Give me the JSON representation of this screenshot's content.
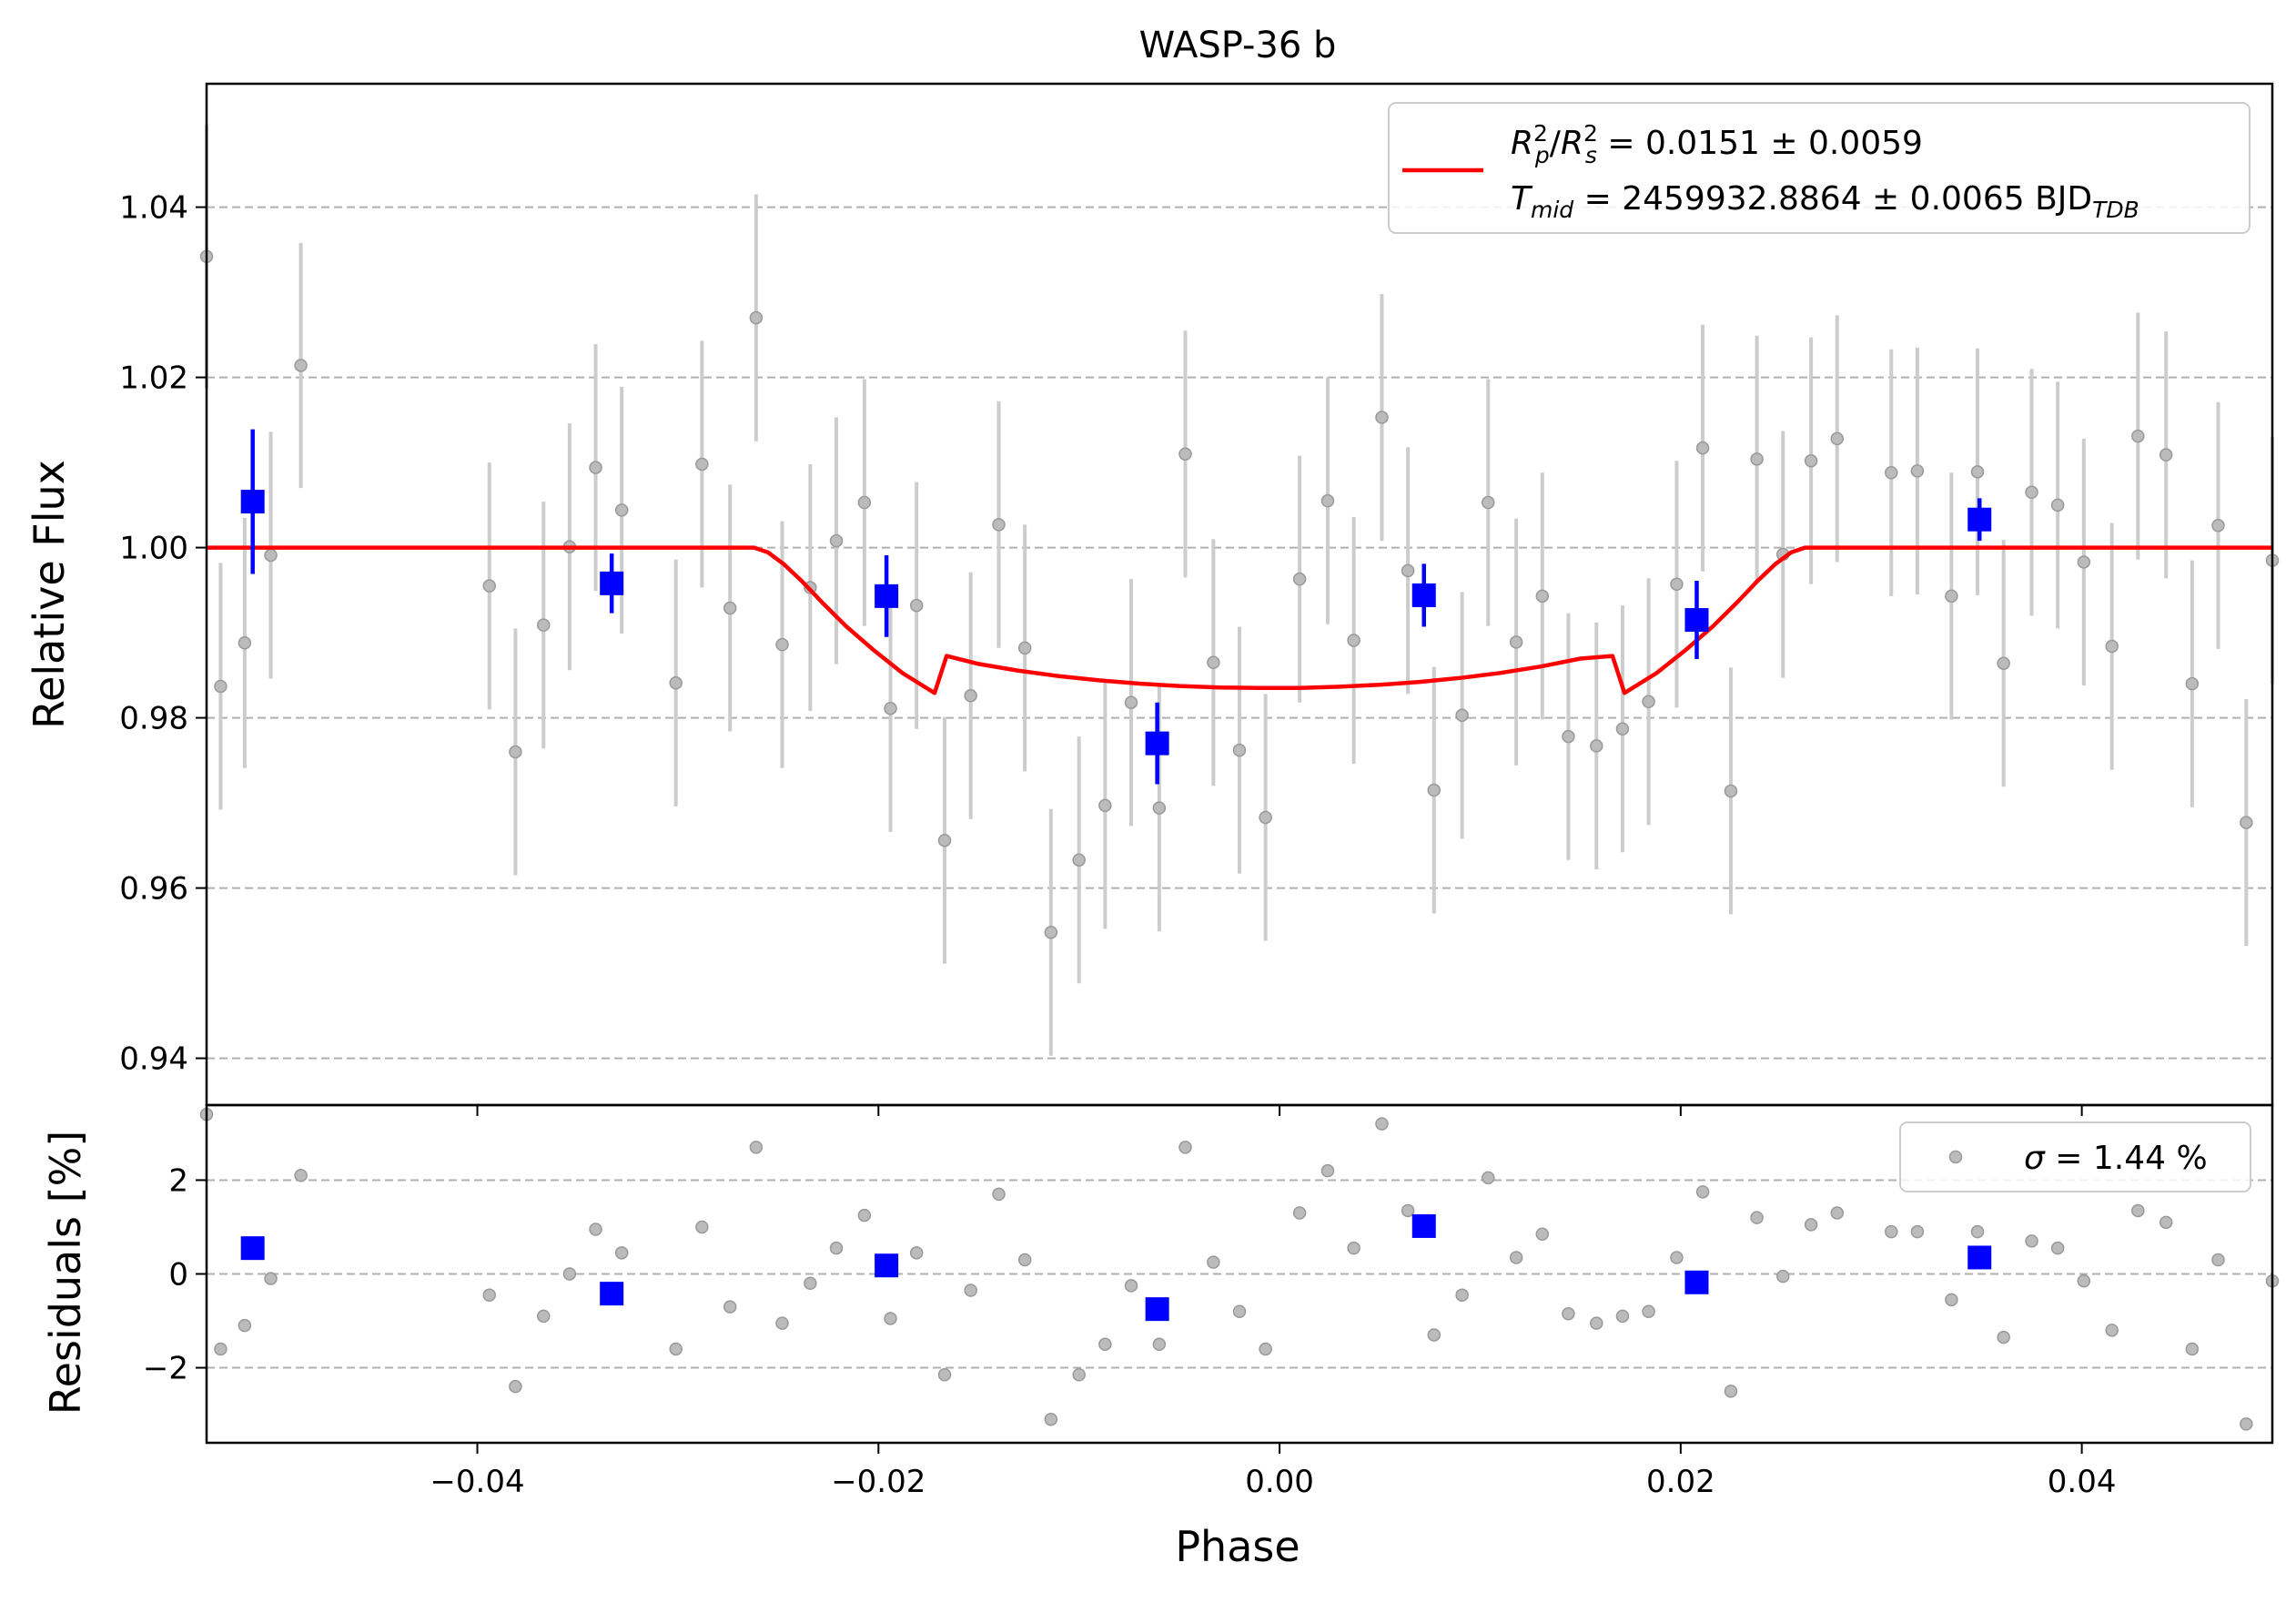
{
  "chart_data": [
    {
      "type": "scatter",
      "panel": "main",
      "title": "WASP-36 b",
      "xlabel": "Phase",
      "ylabel": "Relative Flux",
      "xlim": [
        -0.0535,
        0.0495
      ],
      "ylim": [
        0.9345,
        1.0545
      ],
      "xticks": [
        -0.04,
        -0.02,
        0.0,
        0.02,
        0.04
      ],
      "xtick_labels": [
        "−0.04",
        "−0.02",
        "0.00",
        "0.02",
        "0.04"
      ],
      "yticks": [
        0.94,
        0.96,
        0.98,
        1.0,
        1.02,
        1.04
      ],
      "ytick_labels": [
        "0.94",
        "0.96",
        "0.98",
        "1.00",
        "1.02",
        "1.04"
      ],
      "grid": "horizontal dashed",
      "legend_position": "top-right",
      "legend": {
        "line1": {
          "a": "R",
          "a_sup": "2",
          "a_sub": "p",
          "slash": "/",
          "b": "R",
          "b_sup": "2",
          "b_sub": "s",
          "value": " = 0.0151 ± 0.0059"
        },
        "line2": {
          "a": "T",
          "a_sub": "mid",
          "value": " = 2459932.8864 ± 0.0065 BJD",
          "unit_sub": "TDB"
        }
      },
      "series": [
        {
          "name": "raw",
          "color": "#999999",
          "error_color": "#cccccc",
          "points": [
            [
              -0.0535,
              1.0342,
              0.0155
            ],
            [
              -0.0528,
              0.9837,
              0.0145
            ],
            [
              -0.0516,
              0.9888,
              0.0147
            ],
            [
              -0.0503,
              0.9991,
              0.0145
            ],
            [
              -0.0488,
              1.0214,
              0.0144
            ],
            [
              -0.0394,
              0.9955,
              0.0145
            ],
            [
              -0.0381,
              0.976,
              0.0145
            ],
            [
              -0.0367,
              0.9909,
              0.0145
            ],
            [
              -0.0354,
              1.0001,
              0.0145
            ],
            [
              -0.0341,
              1.0094,
              0.0145
            ],
            [
              -0.0328,
              1.0044,
              0.0145
            ],
            [
              -0.0301,
              0.9841,
              0.0145
            ],
            [
              -0.0288,
              1.0098,
              0.0145
            ],
            [
              -0.0274,
              0.9929,
              0.0145
            ],
            [
              -0.0261,
              1.027,
              0.0145
            ],
            [
              -0.0248,
              0.9886,
              0.0145
            ],
            [
              -0.0234,
              0.9953,
              0.0145
            ],
            [
              -0.0221,
              1.0008,
              0.0145
            ],
            [
              -0.0207,
              1.0053,
              0.0145
            ],
            [
              -0.0194,
              0.9811,
              0.0145
            ],
            [
              -0.0181,
              0.9932,
              0.0145
            ],
            [
              -0.0167,
              0.9656,
              0.0145
            ],
            [
              -0.0154,
              0.9826,
              0.0145
            ],
            [
              -0.014,
              1.0027,
              0.0145
            ],
            [
              -0.0127,
              0.9882,
              0.0145
            ],
            [
              -0.0114,
              0.9548,
              0.0145
            ],
            [
              -0.01,
              0.9633,
              0.0145
            ],
            [
              -0.0087,
              0.9697,
              0.0145
            ],
            [
              -0.0074,
              0.9818,
              0.0145
            ],
            [
              -0.006,
              0.9694,
              0.0145
            ],
            [
              -0.0047,
              1.011,
              0.0145
            ],
            [
              -0.0033,
              0.9865,
              0.0145
            ],
            [
              -0.002,
              0.9762,
              0.0145
            ],
            [
              -0.0007,
              0.9683,
              0.0145
            ],
            [
              0.001,
              0.9963,
              0.0145
            ],
            [
              0.0024,
              1.0055,
              0.0145
            ],
            [
              0.0037,
              0.9891,
              0.0145
            ],
            [
              0.0051,
              1.0153,
              0.0145
            ],
            [
              0.0064,
              0.9973,
              0.0145
            ],
            [
              0.0077,
              0.9715,
              0.0145
            ],
            [
              0.0091,
              0.9803,
              0.0145
            ],
            [
              0.0104,
              1.0053,
              0.0145
            ],
            [
              0.0118,
              0.9889,
              0.0145
            ],
            [
              0.0131,
              0.9943,
              0.0145
            ],
            [
              0.0144,
              0.9778,
              0.0145
            ],
            [
              0.0158,
              0.9767,
              0.0145
            ],
            [
              0.0171,
              0.9787,
              0.0145
            ],
            [
              0.0184,
              0.9819,
              0.0145
            ],
            [
              0.0198,
              0.9957,
              0.0145
            ],
            [
              0.0211,
              1.0117,
              0.0145
            ],
            [
              0.0225,
              0.9714,
              0.0145
            ],
            [
              0.0238,
              1.0104,
              0.0145
            ],
            [
              0.0251,
              0.9992,
              0.0145
            ],
            [
              0.0265,
              1.0102,
              0.0145
            ],
            [
              0.0278,
              1.0128,
              0.0145
            ],
            [
              0.0305,
              1.0088,
              0.0145
            ],
            [
              0.0318,
              1.009,
              0.0145
            ],
            [
              0.0335,
              0.9943,
              0.0145
            ],
            [
              0.0348,
              1.0089,
              0.0145
            ],
            [
              0.0361,
              0.9864,
              0.0145
            ],
            [
              0.0375,
              1.0065,
              0.0145
            ],
            [
              0.0388,
              1.005,
              0.0145
            ],
            [
              0.0401,
              0.9983,
              0.0145
            ],
            [
              0.0415,
              0.9884,
              0.0145
            ],
            [
              0.0428,
              1.0131,
              0.0145
            ],
            [
              0.0442,
              1.0109,
              0.0145
            ],
            [
              0.0455,
              0.984,
              0.0145
            ],
            [
              0.0468,
              1.0026,
              0.0145
            ],
            [
              0.0482,
              0.9677,
              0.0145
            ],
            [
              0.0495,
              0.9985,
              0.0145
            ]
          ]
        },
        {
          "name": "binned",
          "color": "#0000ff",
          "points": [
            [
              -0.0512,
              1.0054,
              0.0085
            ],
            [
              -0.0333,
              0.9958,
              0.0035
            ],
            [
              -0.0196,
              0.9943,
              0.0048
            ],
            [
              -0.0061,
              0.977,
              0.0048
            ],
            [
              0.0072,
              0.9944,
              0.0037
            ],
            [
              0.0208,
              0.9915,
              0.0046
            ],
            [
              0.0349,
              1.0033,
              0.0025
            ]
          ]
        },
        {
          "name": "model",
          "color": "#ff0000",
          "points": [
            [
              -0.0535,
              1.0
            ],
            [
              -0.0262,
              1.0
            ],
            [
              -0.0255,
              0.99943
            ],
            [
              -0.0247,
              0.99802
            ],
            [
              -0.0238,
              0.99601
            ],
            [
              -0.0228,
              0.99354
            ],
            [
              -0.0216,
              0.99074
            ],
            [
              -0.0202,
              0.98788
            ],
            [
              -0.0188,
              0.98526
            ],
            [
              -0.0172,
              0.98292
            ],
            [
              -0.0166,
              0.98727
            ],
            [
              -0.015,
              0.98633
            ],
            [
              -0.013,
              0.98553
            ],
            [
              -0.011,
              0.9849
            ],
            [
              -0.009,
              0.9844
            ],
            [
              -0.007,
              0.98402
            ],
            [
              -0.005,
              0.98374
            ],
            [
              -0.003,
              0.98357
            ],
            [
              -0.001,
              0.9835
            ],
            [
              0.001,
              0.98352
            ],
            [
              0.003,
              0.98365
            ],
            [
              0.005,
              0.98388
            ],
            [
              0.007,
              0.98422
            ],
            [
              0.009,
              0.98468
            ],
            [
              0.011,
              0.98527
            ],
            [
              0.013,
              0.98602
            ],
            [
              0.015,
              0.98696
            ],
            [
              0.0166,
              0.98727
            ],
            [
              0.0172,
              0.98292
            ],
            [
              0.0188,
              0.98526
            ],
            [
              0.0202,
              0.98788
            ],
            [
              0.0216,
              0.99074
            ],
            [
              0.0228,
              0.99354
            ],
            [
              0.0238,
              0.99601
            ],
            [
              0.0247,
              0.99802
            ],
            [
              0.0255,
              0.99943
            ],
            [
              0.0262,
              1.0
            ],
            [
              0.0495,
              1.0
            ]
          ]
        }
      ]
    },
    {
      "type": "scatter",
      "panel": "residuals",
      "xlabel": "Phase",
      "ylabel": "Residuals [%]",
      "xlim": [
        -0.0535,
        0.0495
      ],
      "ylim": [
        -3.6,
        3.6
      ],
      "yticks": [
        -2,
        0,
        2
      ],
      "ytick_labels": [
        "−2",
        "0",
        "2"
      ],
      "grid": "horizontal dashed",
      "legend_position": "top-right",
      "legend": {
        "sigma": "σ",
        "value": " = 1.44 %"
      },
      "series": [
        {
          "name": "raw residuals",
          "color": "#999999",
          "x": [
            -0.0535,
            -0.0528,
            -0.0516,
            -0.0503,
            -0.0488,
            -0.0394,
            -0.0381,
            -0.0367,
            -0.0354,
            -0.0341,
            -0.0328,
            -0.0301,
            -0.0288,
            -0.0274,
            -0.0261,
            -0.0248,
            -0.0234,
            -0.0221,
            -0.0207,
            -0.0194,
            -0.0181,
            -0.0167,
            -0.0154,
            -0.014,
            -0.0127,
            -0.0114,
            -0.01,
            -0.0087,
            -0.0074,
            -0.006,
            -0.0047,
            -0.0033,
            -0.002,
            -0.0007,
            0.001,
            0.0024,
            0.0037,
            0.0051,
            0.0064,
            0.0077,
            0.0091,
            0.0104,
            0.0118,
            0.0131,
            0.0144,
            0.0158,
            0.0171,
            0.0184,
            0.0198,
            0.0211,
            0.0225,
            0.0238,
            0.0251,
            0.0265,
            0.0278,
            0.0305,
            0.0318,
            0.0335,
            0.0348,
            0.0361,
            0.0375,
            0.0388,
            0.0401,
            0.0415,
            0.0428,
            0.0442,
            0.0455,
            0.0468,
            0.0482,
            0.0495
          ],
          "y": [
            3.4,
            -1.6,
            -1.1,
            -0.1,
            2.1,
            -0.45,
            -2.4,
            -0.9,
            0.0,
            0.95,
            0.45,
            -1.6,
            1.0,
            -0.7,
            2.7,
            -1.05,
            -0.2,
            0.55,
            1.25,
            -0.95,
            0.45,
            -2.15,
            -0.35,
            1.7,
            0.3,
            -3.1,
            -2.15,
            -1.5,
            -0.25,
            -1.5,
            2.7,
            0.25,
            -0.8,
            -1.6,
            1.3,
            2.2,
            0.55,
            3.2,
            1.35,
            -1.3,
            -0.45,
            2.05,
            0.35,
            0.85,
            -0.85,
            -1.05,
            -0.9,
            -0.8,
            0.35,
            1.75,
            -2.5,
            1.2,
            -0.05,
            1.05,
            1.3,
            0.9,
            0.9,
            -0.55,
            0.9,
            -1.35,
            0.7,
            0.55,
            -0.15,
            -1.2,
            1.35,
            1.1,
            -1.6,
            0.3,
            -3.2,
            -0.15
          ]
        },
        {
          "name": "binned residuals",
          "color": "#0000ff",
          "x": [
            -0.0512,
            -0.0333,
            -0.0196,
            -0.0061,
            0.0072,
            0.0208,
            0.0349
          ],
          "y": [
            0.55,
            -0.42,
            0.18,
            -0.75,
            1.02,
            -0.18,
            0.35
          ]
        }
      ]
    }
  ]
}
